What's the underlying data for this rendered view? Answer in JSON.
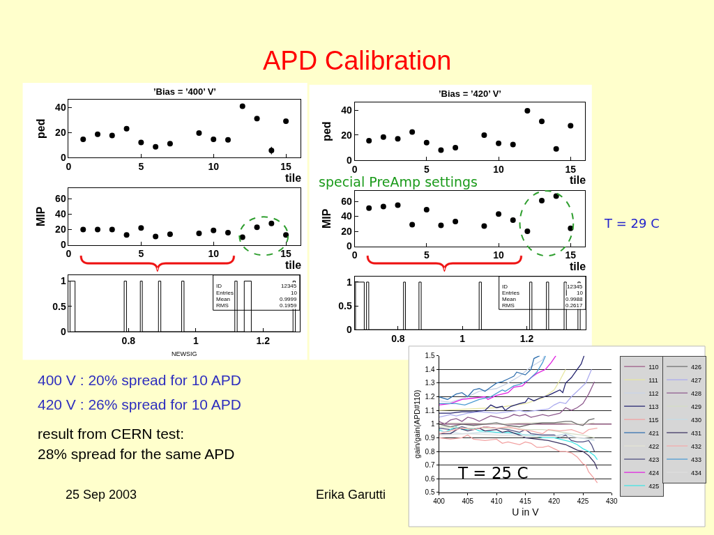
{
  "chart_data": [
    {
      "type": "other",
      "title": "APD Calibration",
      "annotations": [
        "special PreAmp settings",
        "T = 29 C",
        "400 V : 20% spread for 10 APD",
        "420 V : 26% spread for 10 APD",
        "result from CERN test:",
        "28% spread for the same APD",
        "25 Sep 2003",
        "Erika Garutti"
      ]
    },
    {
      "type": "scatter",
      "title": "’Bias = ’400’ V’",
      "xlabel": "tile",
      "ylabel": "ped",
      "x": [
        1,
        2,
        3,
        4,
        5,
        6,
        7,
        9,
        10,
        11,
        12,
        13,
        14,
        15
      ],
      "values": [
        14.5,
        18.5,
        17.5,
        23,
        12,
        8.5,
        11,
        19.5,
        14.5,
        14,
        41,
        31,
        5.5,
        29
      ],
      "errors": [
        null,
        null,
        null,
        null,
        null,
        null,
        null,
        null,
        null,
        null,
        null,
        null,
        3,
        null
      ],
      "color": "#000000",
      "marker": "circle",
      "xlim": [
        0,
        16
      ],
      "ylim": [
        0,
        46
      ],
      "xticks": [
        0,
        5,
        10,
        15
      ],
      "yticks": [
        0,
        20,
        40
      ]
    },
    {
      "type": "scatter",
      "xlabel": "tile",
      "ylabel": "MIP",
      "x": [
        1,
        2,
        3,
        4,
        5,
        6,
        7,
        9,
        10,
        11,
        12,
        13,
        14,
        15
      ],
      "values": [
        20,
        20,
        20,
        13,
        22,
        11,
        14,
        15,
        19,
        16,
        10,
        23,
        28,
        13
      ],
      "color": "#000000",
      "marker": "circle",
      "xlim": [
        0,
        16
      ],
      "ylim": [
        0,
        74
      ],
      "xticks": [
        0,
        5,
        10,
        15
      ],
      "yticks": [
        0,
        20,
        40,
        60
      ]
    },
    {
      "type": "histogram",
      "xlabel": "NEWSIG",
      "bins": [
        0.626,
        0.641,
        0.787,
        0.794,
        0.835,
        0.841,
        0.889,
        0.896,
        0.958,
        0.965,
        1.116,
        1.123,
        1.144,
        1.165,
        1.289,
        1.296
      ],
      "values": [
        1,
        0,
        1,
        0,
        1,
        0,
        1,
        0,
        1,
        0,
        1,
        0,
        1,
        0,
        1
      ],
      "color": "#000000",
      "xlim": [
        0.622,
        1.309
      ],
      "ylim": [
        0,
        1.12
      ],
      "xticks": [
        0.8,
        1,
        1.2
      ],
      "yticks": [
        0,
        0.5,
        1
      ],
      "annotations": [
        "ID 12345",
        "Entries 10",
        "Mean 0.9999",
        "RMS 0.1959"
      ]
    },
    {
      "type": "scatter",
      "title": "’Bias = ’420’ V’",
      "xlabel": "tile",
      "ylabel": "ped",
      "x": [
        1,
        2,
        3,
        4,
        5,
        6,
        7,
        9,
        10,
        11,
        12,
        13,
        14,
        15
      ],
      "values": [
        15.5,
        18.5,
        17,
        22.5,
        14,
        8,
        10,
        20,
        13.5,
        12.5,
        39.5,
        31,
        9,
        27.5
      ],
      "color": "#000000",
      "marker": "circle",
      "xlim": [
        0,
        16
      ],
      "ylim": [
        0,
        46
      ],
      "xticks": [
        0,
        5,
        10,
        15
      ],
      "yticks": [
        0,
        20,
        40
      ]
    },
    {
      "type": "scatter",
      "xlabel": "tile",
      "ylabel": "MIP",
      "x": [
        1,
        2,
        3,
        4,
        5,
        6,
        7,
        9,
        10,
        11,
        12,
        13,
        14,
        15
      ],
      "values": [
        51,
        53,
        55,
        29,
        49,
        28,
        33,
        27,
        43,
        35,
        20,
        61,
        67,
        24
      ],
      "color": "#000000",
      "marker": "circle",
      "xlim": [
        0,
        16
      ],
      "ylim": [
        0,
        74
      ],
      "xticks": [
        0,
        5,
        10,
        15
      ],
      "yticks": [
        0,
        20,
        40,
        60
      ]
    },
    {
      "type": "histogram",
      "bins": [
        0.668,
        0.695,
        0.702,
        0.709,
        0.817,
        0.823,
        0.865,
        0.872,
        1.052,
        1.059,
        1.209,
        1.216,
        1.261,
        1.268,
        1.316,
        1.323,
        1.359,
        1.366
      ],
      "values": [
        1,
        0,
        1,
        0,
        1,
        0,
        1,
        0,
        1,
        0,
        1,
        0,
        1,
        0,
        1,
        0,
        1
      ],
      "color": "#000000",
      "xlim": [
        0.665,
        1.383
      ],
      "ylim": [
        0,
        1.12
      ],
      "xticks": [
        0.8,
        1,
        1.2
      ],
      "yticks": [
        0,
        0.5,
        1
      ],
      "annotations": [
        "ID 12345",
        "Entries 10",
        "Mean 0.9988",
        "RMS 0.2617"
      ]
    },
    {
      "type": "line",
      "xlabel": "U in V",
      "ylabel": "gain/gain(APD#110)",
      "annotations": [
        "T = 25 C"
      ],
      "xlim": [
        400,
        430
      ],
      "ylim": [
        0.5,
        1.5
      ],
      "xticks": [
        400,
        405,
        410,
        415,
        420,
        425,
        430
      ],
      "yticks": [
        0.5,
        0.6,
        0.7,
        0.8,
        0.9,
        1,
        1.1,
        1.2,
        1.3,
        1.4,
        1.5
      ],
      "grid": "y",
      "legend": "right",
      "marker": "none",
      "line_style": "solid",
      "series": [
        {
          "name": "110",
          "color": "#9c5a86",
          "x": [
            400,
            430
          ],
          "values": [
            1,
            1
          ]
        },
        {
          "name": "111",
          "color": "#e6e6a0",
          "x": [
            400,
            405,
            410,
            415,
            418,
            420,
            421,
            422
          ],
          "values": [
            1.1,
            1.11,
            1.12,
            1.15,
            1.19,
            1.25,
            1.32,
            1.4
          ]
        },
        {
          "name": "112",
          "color": "#c8d4e8",
          "x": [
            400,
            402,
            405,
            407,
            410,
            412,
            414,
            416,
            418,
            418.3
          ],
          "values": [
            1.17,
            1.16,
            1.2,
            1.24,
            1.26,
            1.3,
            1.35,
            1.42,
            1.47,
            1.5
          ]
        },
        {
          "name": "113",
          "color": "#22226e",
          "x": [
            400,
            402,
            404,
            406,
            408,
            409,
            410,
            411,
            411.5,
            412.5,
            414,
            415,
            415.5,
            416.5,
            417.5,
            419,
            420,
            421,
            421.5,
            422,
            423,
            424,
            424.7,
            425.2
          ],
          "values": [
            1.08,
            1.08,
            1.09,
            1.09,
            1.1,
            1.14,
            1.12,
            1.13,
            1.1,
            1.13,
            1.15,
            1.16,
            1.19,
            1.17,
            1.19,
            1.21,
            1.23,
            1.25,
            1.23,
            1.3,
            1.34,
            1.4,
            1.44,
            1.5
          ]
        },
        {
          "name": "115",
          "color": "#f2a0a0",
          "x": [
            400,
            402,
            404,
            405,
            406,
            408,
            410,
            411,
            412,
            414,
            415,
            416,
            417,
            418,
            419,
            420,
            421,
            422,
            423,
            424,
            425,
            425.5,
            426,
            427,
            427.5
          ],
          "values": [
            0.9,
            0.89,
            0.9,
            0.92,
            0.89,
            0.88,
            0.89,
            0.86,
            0.87,
            0.85,
            0.87,
            0.86,
            0.83,
            0.83,
            0.84,
            0.82,
            0.8,
            0.8,
            0.79,
            0.76,
            0.71,
            0.7,
            0.65,
            0.6,
            0.57
          ]
        },
        {
          "name": "421",
          "color": "#2f6fae",
          "x": [
            400,
            401.5,
            403,
            404,
            405,
            406,
            407,
            408,
            409,
            410,
            411,
            412,
            413,
            413.5,
            415,
            416,
            416.5,
            417.5
          ],
          "values": [
            1.2,
            1.18,
            1.22,
            1.23,
            1.2,
            1.25,
            1.26,
            1.24,
            1.27,
            1.3,
            1.31,
            1.33,
            1.35,
            1.38,
            1.36,
            1.4,
            1.48,
            1.5
          ]
        },
        {
          "name": "422",
          "color": "#e4e4d4",
          "x": [
            400,
            405,
            410,
            415,
            420,
            425,
            427
          ],
          "values": [
            1.01,
            1.01,
            1,
            1.01,
            1.01,
            1,
            1.01
          ]
        },
        {
          "name": "423",
          "color": "#4a4a7e",
          "x": [
            400,
            402,
            404,
            406,
            408,
            410,
            412,
            414,
            415,
            416,
            418,
            420,
            421,
            422,
            423,
            424,
            425,
            426,
            426.5,
            427
          ],
          "values": [
            0.97,
            0.96,
            0.98,
            0.96,
            0.98,
            0.97,
            0.96,
            0.94,
            0.96,
            0.93,
            0.92,
            0.92,
            0.9,
            0.92,
            0.88,
            0.87,
            0.87,
            0.88,
            0.85,
            0.8
          ]
        },
        {
          "name": "424",
          "color": "#e020e0",
          "x": [
            400,
            402,
            404,
            406,
            408,
            408.5,
            410,
            412,
            413,
            414.5,
            415,
            416,
            417,
            418.5,
            419.5,
            420.3
          ],
          "values": [
            1.14,
            1.15,
            1.18,
            1.19,
            1.2,
            1.18,
            1.21,
            1.23,
            1.27,
            1.28,
            1.3,
            1.34,
            1.37,
            1.4,
            1.45,
            1.5
          ]
        },
        {
          "name": "425",
          "color": "#3ee6e6",
          "x": [
            400,
            401,
            402,
            403,
            404,
            405,
            406,
            407,
            408,
            410,
            411,
            412,
            414,
            415,
            416,
            418,
            420,
            421,
            422,
            423,
            424,
            425,
            426,
            427,
            427.5
          ],
          "values": [
            0.96,
            0.94,
            0.96,
            0.98,
            0.96,
            0.96,
            0.97,
            0.95,
            0.95,
            0.94,
            0.94,
            0.94,
            0.93,
            0.92,
            0.92,
            0.9,
            0.9,
            0.89,
            0.88,
            0.87,
            0.85,
            0.82,
            0.8,
            0.77,
            0.74
          ]
        },
        {
          "name": "426",
          "color": "#6e6e6e",
          "x": [
            400,
            402,
            404,
            406,
            408,
            410,
            412,
            414,
            416,
            418,
            420,
            422,
            423,
            424,
            425,
            426,
            427
          ],
          "values": [
            1,
            0.98,
            1,
            0.99,
            1,
            1.01,
            0.99,
            0.98,
            1,
            1.01,
            1.01,
            1.02,
            1.02,
            1,
            0.99,
            1.03,
            1.04
          ]
        },
        {
          "name": "427",
          "color": "#aaaaee",
          "x": [
            400,
            402,
            403,
            405,
            407,
            410,
            412,
            414,
            415,
            417,
            419,
            420,
            421,
            422,
            423,
            424,
            425,
            425.5,
            426.5
          ],
          "values": [
            1.05,
            1.07,
            1.06,
            1.08,
            1.09,
            1.08,
            1.09,
            1.1,
            1.09,
            1.1,
            1.11,
            1.14,
            1.16,
            1.15,
            1.2,
            1.24,
            1.28,
            1.3,
            1.4
          ]
        },
        {
          "name": "428",
          "color": "#8e5a8e",
          "x": [
            400,
            401,
            402,
            403,
            404,
            405,
            406,
            407,
            408,
            409,
            410,
            411,
            412,
            413,
            414,
            415,
            416,
            417,
            418,
            419,
            420,
            421,
            422,
            423,
            424,
            425,
            426,
            427
          ],
          "values": [
            1.02,
            1,
            1.03,
            1.04,
            1.02,
            1.05,
            1.04,
            1.02,
            1.04,
            1.06,
            1.05,
            1.04,
            1.05,
            1.07,
            1.06,
            1.07,
            1.05,
            1.06,
            1.07,
            1.06,
            1.07,
            1.08,
            1.12,
            1.1,
            1.12,
            1.15,
            1.22,
            1.31
          ]
        },
        {
          "name": "429",
          "color": "#d4dcc4",
          "x": [
            400,
            405,
            410,
            413,
            415,
            418,
            420,
            423,
            425,
            427
          ],
          "values": [
            0.98,
            0.97,
            0.97,
            0.97,
            0.96,
            0.96,
            0.95,
            0.93,
            0.92,
            0.9
          ]
        },
        {
          "name": "430",
          "color": "#c4dce6",
          "x": [
            400,
            404,
            408,
            412,
            416,
            420,
            422,
            424,
            426,
            427
          ],
          "values": [
            0.95,
            0.93,
            0.94,
            0.93,
            0.92,
            0.91,
            0.93,
            0.9,
            0.89,
            0.88
          ]
        },
        {
          "name": "431",
          "color": "#3a3060",
          "x": [
            400,
            402,
            403.5,
            405,
            407,
            408,
            410,
            411,
            412,
            414,
            415,
            417,
            419,
            420,
            421,
            422,
            423,
            424,
            425,
            426,
            427,
            427.5
          ],
          "values": [
            0.93,
            0.93,
            0.97,
            0.95,
            0.97,
            0.95,
            0.96,
            0.94,
            0.95,
            0.92,
            0.9,
            0.89,
            0.88,
            0.87,
            0.86,
            0.85,
            0.83,
            0.81,
            0.8,
            0.77,
            0.72,
            0.67
          ]
        },
        {
          "name": "432",
          "color": "#f4aaaa",
          "x": [
            400,
            402,
            404,
            406,
            408,
            410,
            412,
            414,
            416,
            418,
            419,
            421,
            423,
            425,
            426,
            427.5
          ],
          "values": [
            0.93,
            0.95,
            0.97,
            0.96,
            0.98,
            0.97,
            0.98,
            0.96,
            0.95,
            0.93,
            0.96,
            0.95,
            0.96,
            0.93,
            0.96,
            0.97
          ]
        },
        {
          "name": "433",
          "color": "#4a9ad2",
          "x": [
            400,
            403,
            404.5,
            407,
            409,
            411,
            411.5,
            413,
            414,
            415.5,
            417,
            418,
            418.5
          ],
          "values": [
            1.15,
            1.15,
            1.14,
            1.18,
            1.2,
            1.25,
            1.24,
            1.28,
            1.29,
            1.32,
            1.38,
            1.45,
            1.5
          ]
        },
        {
          "name": "434",
          "color": "#dedede",
          "x": [
            400,
            405,
            410,
            415,
            420,
            425,
            427
          ],
          "values": [
            0.92,
            0.93,
            0.92,
            0.91,
            0.91,
            0.9,
            0.89
          ]
        }
      ]
    }
  ]
}
